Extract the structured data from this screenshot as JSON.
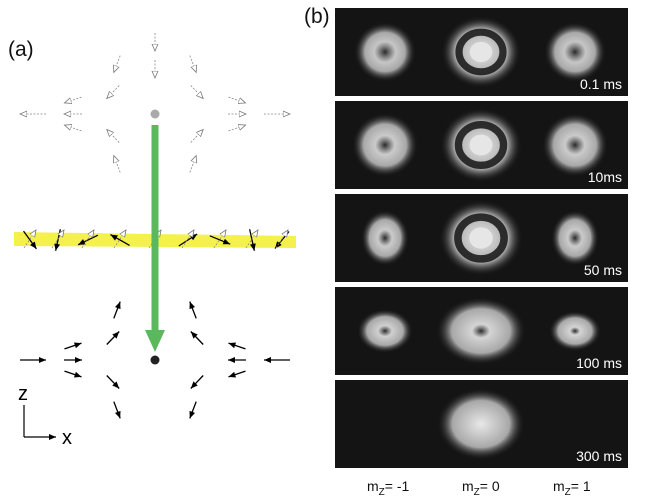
{
  "panel_a": {
    "label": "(a)",
    "axis_vertical": "z",
    "axis_horizontal": "x"
  },
  "panel_b": {
    "label": "(b)",
    "times": [
      "0.1 ms",
      "10ms",
      "50 ms",
      "100 ms",
      "300 ms"
    ],
    "columns": [
      {
        "prefix": "m",
        "sub": "Z",
        "suffix": "= -1"
      },
      {
        "prefix": "m",
        "sub": "Z",
        "suffix": "= 0"
      },
      {
        "prefix": "m",
        "sub": "Z",
        "suffix": "= 1"
      }
    ]
  },
  "colors": {
    "spin_flip_band": "#f3ef3a",
    "transition_arrow": "#5cb85c",
    "frame_background": "#141414"
  }
}
